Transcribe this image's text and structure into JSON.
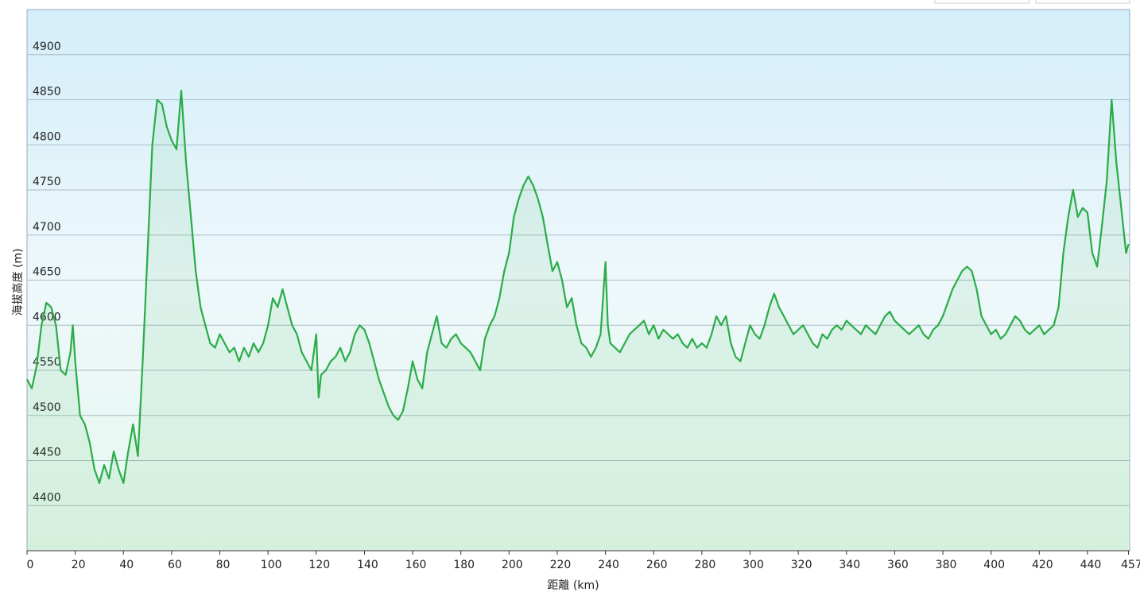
{
  "chart_data": {
    "type": "area",
    "x_label": "距離 (km)",
    "y_label": "海拔高度 (m)",
    "color": "#2aac48",
    "xlim": [
      0,
      457.5
    ],
    "ylim": [
      4350,
      4950
    ],
    "xticks": [
      0,
      20,
      40,
      60,
      80,
      100,
      120,
      140,
      160,
      180,
      200,
      220,
      240,
      260,
      280,
      300,
      320,
      340,
      360,
      380,
      400,
      420,
      440,
      457
    ],
    "yticks": [
      4400,
      4450,
      4500,
      4550,
      4600,
      4650,
      4700,
      4750,
      4800,
      4850,
      4900
    ],
    "grid": true,
    "x": [
      0,
      2,
      4,
      6,
      8,
      10,
      12,
      14,
      16,
      18,
      19,
      20,
      22,
      24,
      26,
      28,
      30,
      32,
      34,
      36,
      38,
      40,
      42,
      44,
      46,
      48,
      50,
      52,
      54,
      56,
      58,
      60,
      62,
      64,
      66,
      68,
      70,
      72,
      74,
      76,
      78,
      80,
      82,
      84,
      86,
      88,
      90,
      92,
      94,
      96,
      98,
      100,
      102,
      104,
      106,
      108,
      110,
      112,
      114,
      116,
      118,
      120,
      121,
      122,
      124,
      126,
      128,
      130,
      132,
      134,
      136,
      138,
      140,
      142,
      144,
      146,
      148,
      150,
      152,
      154,
      156,
      158,
      160,
      162,
      164,
      166,
      168,
      170,
      172,
      174,
      176,
      178,
      180,
      182,
      184,
      186,
      188,
      190,
      192,
      194,
      196,
      198,
      200,
      202,
      204,
      206,
      208,
      210,
      212,
      214,
      216,
      218,
      220,
      222,
      224,
      226,
      228,
      230,
      232,
      234,
      236,
      238,
      240,
      241,
      242,
      244,
      246,
      248,
      250,
      252,
      254,
      256,
      258,
      260,
      262,
      264,
      266,
      268,
      270,
      272,
      274,
      276,
      278,
      280,
      282,
      284,
      286,
      288,
      290,
      292,
      294,
      296,
      298,
      300,
      302,
      304,
      306,
      308,
      310,
      312,
      314,
      316,
      318,
      320,
      322,
      324,
      326,
      328,
      330,
      332,
      334,
      336,
      338,
      340,
      342,
      344,
      346,
      348,
      350,
      352,
      354,
      356,
      358,
      360,
      362,
      364,
      366,
      368,
      370,
      372,
      374,
      376,
      378,
      380,
      382,
      384,
      386,
      388,
      390,
      392,
      394,
      396,
      398,
      400,
      402,
      404,
      406,
      408,
      410,
      412,
      414,
      416,
      418,
      420,
      422,
      424,
      426,
      428,
      430,
      432,
      434,
      436,
      438,
      440,
      442,
      444,
      446,
      448,
      450,
      452,
      454,
      456,
      457
    ],
    "values": [
      4540,
      4530,
      4555,
      4600,
      4625,
      4620,
      4600,
      4550,
      4545,
      4570,
      4600,
      4560,
      4500,
      4490,
      4470,
      4440,
      4425,
      4445,
      4430,
      4460,
      4440,
      4425,
      4460,
      4490,
      4455,
      4560,
      4680,
      4800,
      4850,
      4845,
      4820,
      4805,
      4795,
      4860,
      4780,
      4720,
      4660,
      4620,
      4600,
      4580,
      4575,
      4590,
      4580,
      4570,
      4575,
      4560,
      4575,
      4565,
      4580,
      4570,
      4580,
      4600,
      4630,
      4620,
      4640,
      4620,
      4600,
      4590,
      4570,
      4560,
      4550,
      4590,
      4520,
      4545,
      4550,
      4560,
      4565,
      4575,
      4560,
      4570,
      4590,
      4600,
      4595,
      4580,
      4560,
      4540,
      4525,
      4510,
      4500,
      4495,
      4505,
      4530,
      4560,
      4540,
      4530,
      4570,
      4590,
      4610,
      4580,
      4575,
      4585,
      4590,
      4580,
      4575,
      4570,
      4560,
      4550,
      4585,
      4600,
      4610,
      4630,
      4660,
      4680,
      4720,
      4740,
      4755,
      4765,
      4755,
      4740,
      4720,
      4690,
      4660,
      4670,
      4650,
      4620,
      4630,
      4600,
      4580,
      4575,
      4565,
      4575,
      4590,
      4670,
      4600,
      4580,
      4575,
      4570,
      4580,
      4590,
      4595,
      4600,
      4605,
      4590,
      4600,
      4585,
      4595,
      4590,
      4585,
      4590,
      4580,
      4575,
      4585,
      4575,
      4580,
      4575,
      4590,
      4610,
      4600,
      4610,
      4580,
      4565,
      4560,
      4580,
      4600,
      4590,
      4585,
      4600,
      4620,
      4635,
      4620,
      4610,
      4600,
      4590,
      4595,
      4600,
      4590,
      4580,
      4575,
      4590,
      4585,
      4595,
      4600,
      4595,
      4605,
      4600,
      4595,
      4590,
      4600,
      4595,
      4590,
      4600,
      4610,
      4615,
      4605,
      4600,
      4595,
      4590,
      4595,
      4600,
      4590,
      4585,
      4595,
      4600,
      4610,
      4625,
      4640,
      4650,
      4660,
      4665,
      4660,
      4640,
      4610,
      4600,
      4590,
      4595,
      4585,
      4590,
      4600,
      4610,
      4605,
      4595,
      4590,
      4595,
      4600,
      4590,
      4595,
      4600,
      4620,
      4680,
      4720,
      4750,
      4720,
      4730,
      4725,
      4680,
      4665,
      4710,
      4760,
      4850,
      4780,
      4730,
      4680,
      4690
    ]
  }
}
